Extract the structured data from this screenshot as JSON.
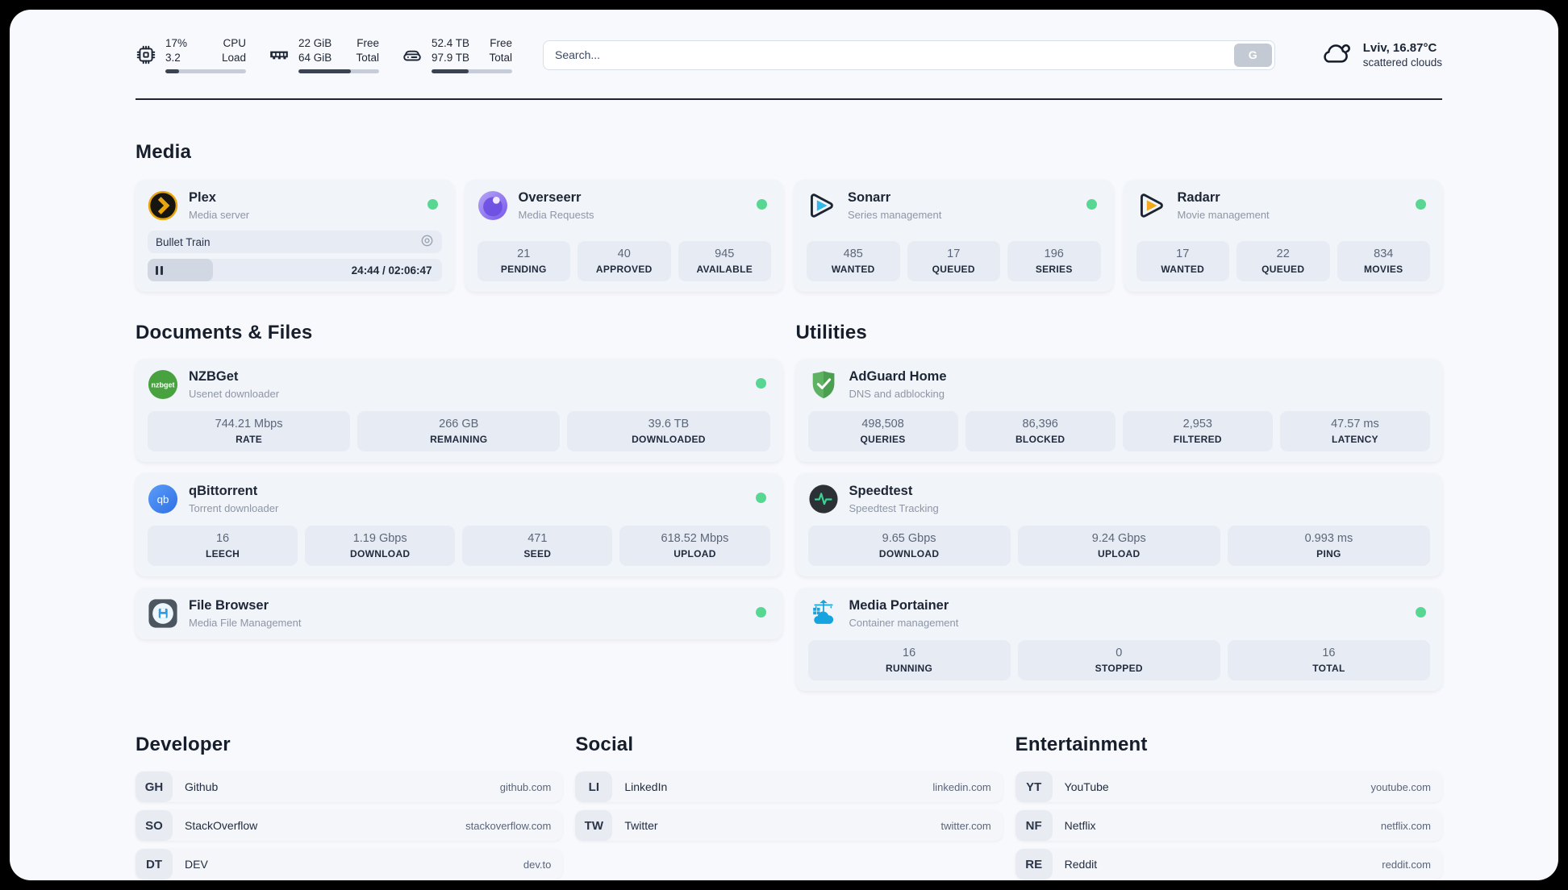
{
  "header": {
    "stats": [
      {
        "top_left": "17%",
        "bottom_left": "3.2",
        "top_right": "CPU",
        "bottom_right": "Load",
        "progress_pct": 17
      },
      {
        "top_left": "22 GiB",
        "bottom_left": "64 GiB",
        "top_right": "Free",
        "bottom_right": "Total",
        "progress_pct": 65
      },
      {
        "top_left": "52.4 TB",
        "bottom_left": "97.9 TB",
        "top_right": "Free",
        "bottom_right": "Total",
        "progress_pct": 46
      }
    ],
    "search": {
      "placeholder": "Search...",
      "button_label": "G"
    },
    "weather": {
      "location": "Lviv, 16.87°C",
      "condition": "scattered clouds"
    }
  },
  "media": {
    "title": "Media",
    "plex": {
      "name": "Plex",
      "subtitle": "Media server",
      "now_playing": "Bullet Train",
      "time": "24:44 / 02:06:47",
      "progress_pct": 19.5
    },
    "overseerr": {
      "name": "Overseerr",
      "subtitle": "Media Requests",
      "stats": [
        {
          "value": "21",
          "label": "PENDING"
        },
        {
          "value": "40",
          "label": "APPROVED"
        },
        {
          "value": "945",
          "label": "AVAILABLE"
        }
      ]
    },
    "sonarr": {
      "name": "Sonarr",
      "subtitle": "Series management",
      "stats": [
        {
          "value": "485",
          "label": "WANTED"
        },
        {
          "value": "17",
          "label": "QUEUED"
        },
        {
          "value": "196",
          "label": "SERIES"
        }
      ]
    },
    "radarr": {
      "name": "Radarr",
      "subtitle": "Movie management",
      "stats": [
        {
          "value": "17",
          "label": "WANTED"
        },
        {
          "value": "22",
          "label": "QUEUED"
        },
        {
          "value": "834",
          "label": "MOVIES"
        }
      ]
    }
  },
  "documents": {
    "title": "Documents & Files",
    "nzbget": {
      "name": "NZBGet",
      "subtitle": "Usenet downloader",
      "badge_text": "nzbget",
      "stats": [
        {
          "value": "744.21 Mbps",
          "label": "RATE"
        },
        {
          "value": "266 GB",
          "label": "REMAINING"
        },
        {
          "value": "39.6 TB",
          "label": "DOWNLOADED"
        }
      ]
    },
    "qbittorrent": {
      "name": "qBittorrent",
      "subtitle": "Torrent downloader",
      "badge_text": "qb",
      "stats": [
        {
          "value": "16",
          "label": "LEECH"
        },
        {
          "value": "1.19 Gbps",
          "label": "DOWNLOAD"
        },
        {
          "value": "471",
          "label": "SEED"
        },
        {
          "value": "618.52 Mbps",
          "label": "UPLOAD"
        }
      ]
    },
    "filebrowser": {
      "name": "File Browser",
      "subtitle": "Media File Management"
    }
  },
  "utilities": {
    "title": "Utilities",
    "adguard": {
      "name": "AdGuard Home",
      "subtitle": "DNS and adblocking",
      "stats": [
        {
          "value": "498,508",
          "label": "QUERIES"
        },
        {
          "value": "86,396",
          "label": "BLOCKED"
        },
        {
          "value": "2,953",
          "label": "FILTERED"
        },
        {
          "value": "47.57 ms",
          "label": "LATENCY"
        }
      ]
    },
    "speedtest": {
      "name": "Speedtest",
      "subtitle": "Speedtest Tracking",
      "stats": [
        {
          "value": "9.65 Gbps",
          "label": "DOWNLOAD"
        },
        {
          "value": "9.24 Gbps",
          "label": "UPLOAD"
        },
        {
          "value": "0.993 ms",
          "label": "PING"
        }
      ]
    },
    "portainer": {
      "name": "Media Portainer",
      "subtitle": "Container management",
      "stats": [
        {
          "value": "16",
          "label": "RUNNING"
        },
        {
          "value": "0",
          "label": "STOPPED"
        },
        {
          "value": "16",
          "label": "TOTAL"
        }
      ]
    }
  },
  "bookmarks": {
    "developer": {
      "title": "Developer",
      "items": [
        {
          "abbr": "GH",
          "name": "Github",
          "url": "github.com"
        },
        {
          "abbr": "SO",
          "name": "StackOverflow",
          "url": "stackoverflow.com"
        },
        {
          "abbr": "DT",
          "name": "DEV",
          "url": "dev.to"
        }
      ]
    },
    "social": {
      "title": "Social",
      "items": [
        {
          "abbr": "LI",
          "name": "LinkedIn",
          "url": "linkedin.com"
        },
        {
          "abbr": "TW",
          "name": "Twitter",
          "url": "twitter.com"
        }
      ]
    },
    "entertainment": {
      "title": "Entertainment",
      "items": [
        {
          "abbr": "YT",
          "name": "YouTube",
          "url": "youtube.com"
        },
        {
          "abbr": "NF",
          "name": "Netflix",
          "url": "netflix.com"
        },
        {
          "abbr": "RE",
          "name": "Reddit",
          "url": "reddit.com"
        }
      ]
    }
  },
  "colors": {
    "status_green": "#57d792"
  }
}
